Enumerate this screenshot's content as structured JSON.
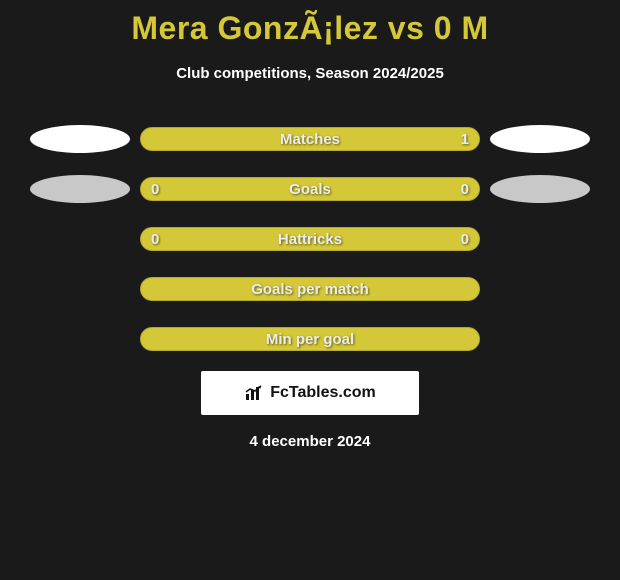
{
  "title": "Mera GonzÃ¡lez vs 0 M",
  "subtitle": "Club competitions, Season 2024/2025",
  "date": "4 december 2024",
  "brand": {
    "text": "FcTables.com"
  },
  "colors": {
    "bar": "#d4c838",
    "ellipse_white": "#ffffff",
    "ellipse_grey": "#c8c8c8",
    "background": "#1a1a1a",
    "brand_bg": "#ffffff",
    "brand_text": "#111111",
    "title_color": "#d4c838",
    "bar_text": "#ececec"
  },
  "rows": [
    {
      "label": "Matches",
      "left": "",
      "right": "1",
      "ellipses": true,
      "ellipse_variant": "white"
    },
    {
      "label": "Goals",
      "left": "0",
      "right": "0",
      "ellipses": true,
      "ellipse_variant": "grey"
    },
    {
      "label": "Hattricks",
      "left": "0",
      "right": "0",
      "ellipses": false,
      "ellipse_variant": "grey"
    },
    {
      "label": "Goals per match",
      "left": "",
      "right": "",
      "ellipses": false,
      "ellipse_variant": "grey"
    },
    {
      "label": "Min per goal",
      "left": "",
      "right": "",
      "ellipses": false,
      "ellipse_variant": "grey"
    }
  ]
}
